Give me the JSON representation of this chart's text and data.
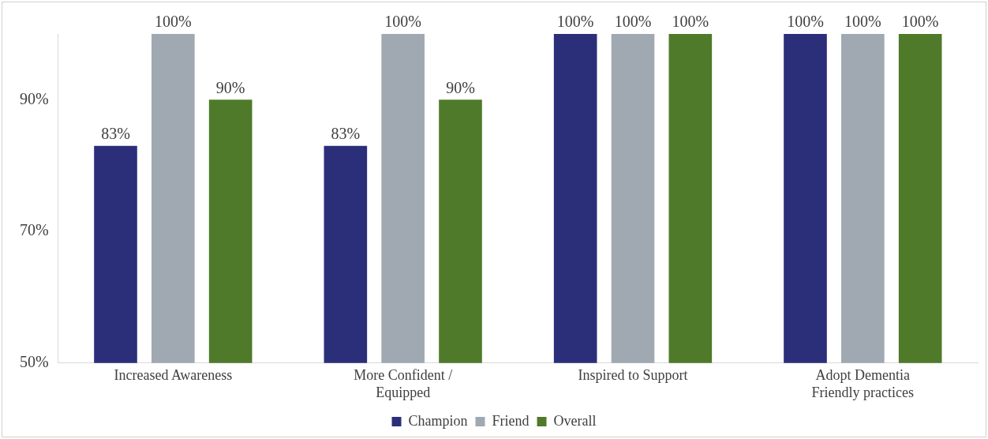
{
  "chart_data": {
    "type": "bar",
    "categories": [
      "Increased Awareness",
      "More Confident / Equipped",
      "Inspired to Support",
      "Adopt Dementia Friendly practices"
    ],
    "series": [
      {
        "name": "Champion",
        "color": "#2b2f7a",
        "values": [
          83,
          83,
          100,
          100
        ],
        "value_labels": [
          "83%",
          "83%",
          "100%",
          "100%"
        ]
      },
      {
        "name": "Friend",
        "color": "#a0a9b1",
        "values": [
          100,
          100,
          100,
          100
        ],
        "value_labels": [
          "100%",
          "100%",
          "100%",
          "100%"
        ]
      },
      {
        "name": "Overall",
        "color": "#4f7a2a",
        "values": [
          90,
          90,
          100,
          100
        ],
        "value_labels": [
          "90%",
          "90%",
          "100%",
          "100%"
        ]
      }
    ],
    "ylim": [
      50,
      100
    ],
    "yticks": [
      {
        "value": 50,
        "label": "50%"
      },
      {
        "value": 70,
        "label": "70%"
      },
      {
        "value": 90,
        "label": "90%"
      }
    ],
    "grid": false,
    "legend": "bottom"
  }
}
